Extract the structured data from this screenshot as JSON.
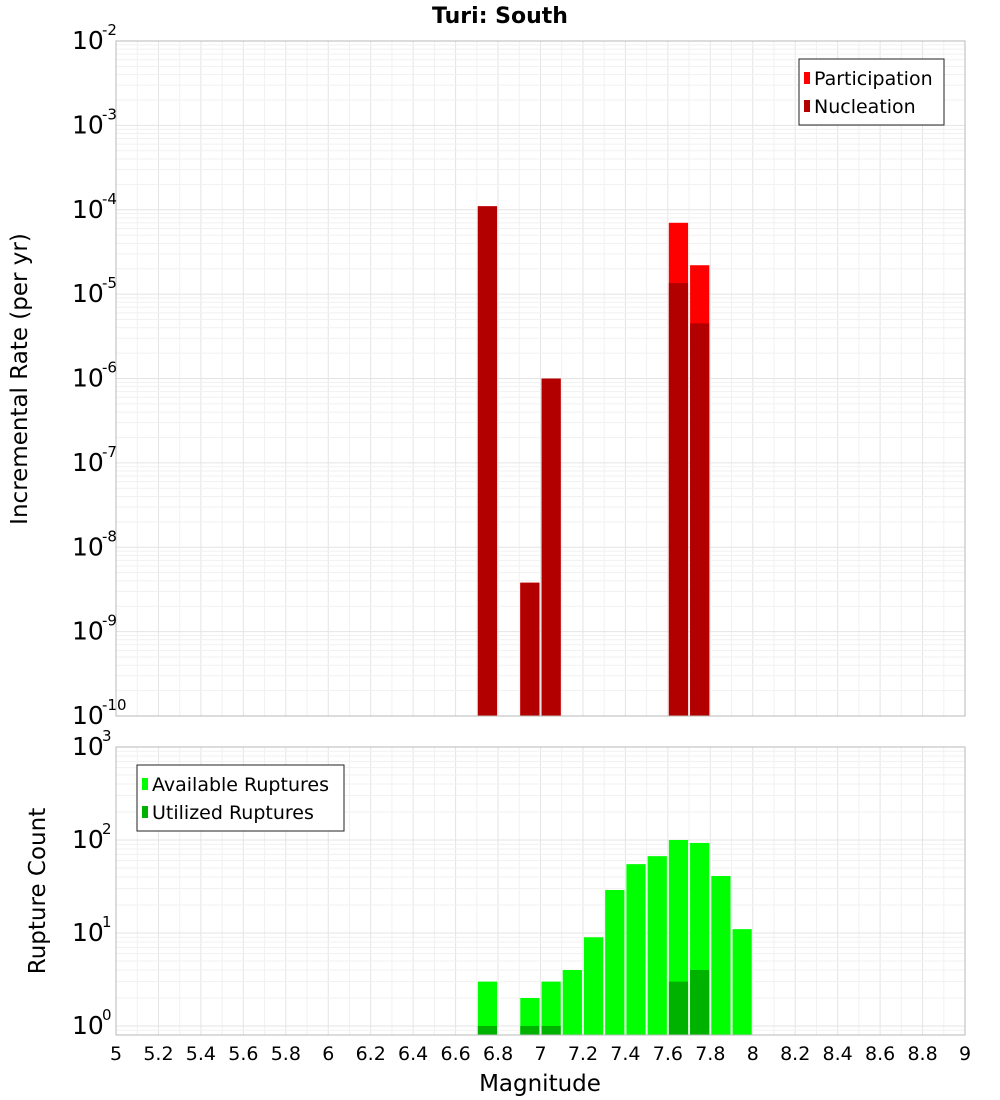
{
  "chart_data": [
    {
      "type": "bar",
      "title": "Turi: South",
      "xlabel": "",
      "ylabel": "Incremental Rate (per yr)",
      "yscale": "log",
      "ylim": [
        1e-10,
        0.01
      ],
      "xlim": [
        5,
        9
      ],
      "grid": true,
      "legend_position": "top-right",
      "bar_width": 0.1,
      "series": [
        {
          "name": "Participation",
          "color": "#ff0000",
          "x": [
            6.75,
            6.95,
            7.05,
            7.65,
            7.75
          ],
          "values": [
            0.00011,
            3.8e-09,
            1e-06,
            7e-05,
            2.2e-05
          ]
        },
        {
          "name": "Nucleation",
          "color": "#b20000",
          "x": [
            6.75,
            6.95,
            7.05,
            7.65,
            7.75
          ],
          "values": [
            0.00011,
            3.8e-09,
            1e-06,
            1.35e-05,
            4.5e-06
          ]
        }
      ]
    },
    {
      "type": "bar",
      "title": "",
      "xlabel": "Magnitude",
      "ylabel": "Rupture Count",
      "yscale": "log",
      "ylim": [
        0.8,
        1000
      ],
      "xlim": [
        5,
        9
      ],
      "grid": true,
      "legend_position": "top-left",
      "bar_width": 0.1,
      "series": [
        {
          "name": "Available Ruptures",
          "color": "#00ff00",
          "x": [
            6.75,
            6.95,
            7.05,
            7.15,
            7.25,
            7.35,
            7.45,
            7.55,
            7.65,
            7.75,
            7.85,
            7.95
          ],
          "values": [
            3,
            2,
            3,
            4,
            9,
            29,
            55,
            67,
            100,
            93,
            41,
            11
          ]
        },
        {
          "name": "Utilized Ruptures",
          "color": "#00b200",
          "x": [
            6.75,
            6.95,
            7.05,
            7.65,
            7.75
          ],
          "values": [
            1,
            1,
            1,
            3,
            4
          ]
        }
      ],
      "xticks": [
        "5",
        "5.2",
        "5.4",
        "5.6",
        "5.8",
        "6",
        "6.2",
        "6.4",
        "6.6",
        "6.8",
        "7",
        "7.2",
        "7.4",
        "7.6",
        "7.8",
        "8",
        "8.2",
        "8.4",
        "8.6",
        "8.8",
        "9"
      ]
    }
  ]
}
